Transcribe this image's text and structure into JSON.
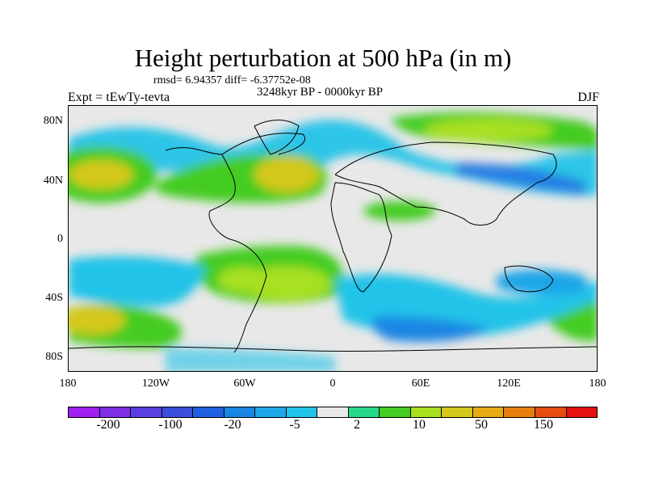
{
  "title": "Height perturbation at 500 hPa (in m)",
  "stats_text": "rmsd= 6.94357 diff= -6.37752e-08",
  "period": "3248kyr BP - 0000kyr BP",
  "experiment": "Expt = tEwTy-tevta",
  "season": "DJF",
  "lat_labels": [
    "80N",
    "40N",
    "0",
    "40S",
    "80S"
  ],
  "lon_labels": [
    "180",
    "120W",
    "60W",
    "0",
    "60E",
    "120E",
    "180"
  ],
  "colorbar": {
    "colors": [
      "#a020f0",
      "#7f2fe6",
      "#5a3ee0",
      "#3b4ddb",
      "#1f60e0",
      "#1a86e4",
      "#1ea6e8",
      "#22c3e8",
      "#e8e8e8",
      "#26d98a",
      "#44cc22",
      "#a8e020",
      "#d4c81c",
      "#e6aa14",
      "#e67f10",
      "#e64c10",
      "#e61010"
    ],
    "labels": [
      "-200",
      "-100",
      "-20",
      "-5",
      "2",
      "10",
      "50",
      "150"
    ]
  }
}
